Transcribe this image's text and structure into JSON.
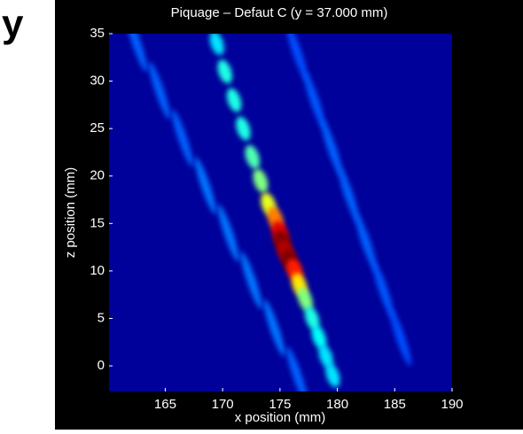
{
  "fragment": "y",
  "chart_data": {
    "type": "heatmap",
    "title": "Piquage – Defaut C (y = 37.000 mm)",
    "x_label": "x position (mm)",
    "y_label": "z position (mm)",
    "colormap": "jet",
    "background_color": "#00009a",
    "xlim": [
      160.1,
      190
    ],
    "ylim": [
      -2.7,
      35
    ],
    "xticks": [
      165,
      170,
      175,
      180,
      185,
      190
    ],
    "yticks": [
      0,
      5,
      10,
      15,
      20,
      25,
      30,
      35
    ],
    "layers": [
      {
        "x": [
          162.5,
          164.5,
          166.5,
          168.5,
          170.5,
          172.5,
          174.5,
          176.5
        ],
        "y": [
          34,
          29,
          24,
          19,
          14,
          9,
          4,
          -1
        ],
        "values": [
          0.22,
          0.22,
          0.22,
          0.24,
          0.24,
          0.24,
          0.24,
          0.22
        ]
      },
      {
        "x": [
          176.5,
          178,
          179.5,
          181,
          182.5,
          184,
          185.5
        ],
        "y": [
          33,
          28,
          23,
          18,
          13,
          8,
          3
        ],
        "values": [
          0.2,
          0.21,
          0.22,
          0.22,
          0.22,
          0.21,
          0.2
        ]
      },
      {
        "x": [
          169.5,
          170.2,
          171.0,
          171.8,
          172.6,
          173.3,
          174.0,
          174.6,
          175.0,
          175.2,
          175.5,
          175.9,
          176.3,
          176.7,
          177.2,
          177.8,
          178.4,
          179.0,
          179.6
        ],
        "y": [
          34,
          31,
          28,
          25,
          22,
          19.5,
          17,
          15.5,
          14,
          13,
          12,
          11,
          10,
          8.5,
          7,
          5,
          3,
          1,
          -1
        ],
        "values": [
          0.35,
          0.4,
          0.4,
          0.4,
          0.45,
          0.5,
          0.6,
          0.75,
          0.9,
          1.0,
          0.95,
          1.0,
          0.85,
          0.65,
          0.5,
          0.4,
          0.38,
          0.35,
          0.35
        ]
      }
    ]
  }
}
